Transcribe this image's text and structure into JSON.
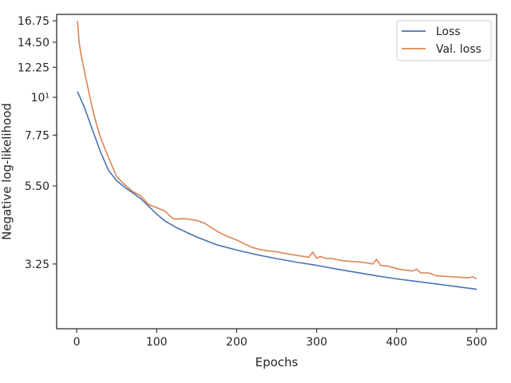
{
  "chart_data": {
    "type": "line",
    "xlabel": "Epochs",
    "ylabel": "Negative log-likelihood",
    "xlim": [
      -25,
      525
    ],
    "ylim": [
      2.1,
      17.5
    ],
    "y_scale": "log",
    "x_ticks": [
      0,
      100,
      200,
      300,
      400,
      500
    ],
    "y_ticks": [
      {
        "value": 3.25,
        "label": "3.25"
      },
      {
        "value": 5.5,
        "label": "5.50"
      },
      {
        "value": 7.75,
        "label": "7.75"
      },
      {
        "value": 10.0,
        "label": "10¹"
      },
      {
        "value": 12.25,
        "label": "12.25"
      },
      {
        "value": 14.5,
        "label": "14.50"
      },
      {
        "value": 16.75,
        "label": "16.75"
      }
    ],
    "grid": false,
    "legend_position": "top-right",
    "series": [
      {
        "name": "Loss",
        "color": "#4c72b0",
        "x": [
          1,
          10,
          20,
          30,
          40,
          50,
          60,
          70,
          80,
          90,
          100,
          110,
          125,
          150,
          175,
          200,
          225,
          250,
          275,
          300,
          325,
          350,
          375,
          400,
          425,
          450,
          475,
          500
        ],
        "y": [
          10.4,
          9.3,
          8.0,
          6.9,
          6.1,
          5.7,
          5.45,
          5.25,
          5.05,
          4.8,
          4.55,
          4.35,
          4.15,
          3.9,
          3.7,
          3.57,
          3.46,
          3.37,
          3.29,
          3.22,
          3.14,
          3.07,
          3.0,
          2.94,
          2.89,
          2.84,
          2.79,
          2.74
        ]
      },
      {
        "name": "Val. loss",
        "color": "#dd8452",
        "x": [
          1,
          3,
          5,
          10,
          15,
          20,
          25,
          30,
          35,
          40,
          50,
          60,
          70,
          80,
          90,
          100,
          110,
          120,
          125,
          130,
          140,
          150,
          160,
          170,
          180,
          190,
          200,
          210,
          220,
          230,
          240,
          250,
          260,
          270,
          280,
          290,
          295,
          300,
          305,
          310,
          320,
          330,
          340,
          350,
          360,
          370,
          375,
          380,
          390,
          400,
          410,
          420,
          425,
          430,
          440,
          450,
          460,
          470,
          480,
          490,
          495,
          500
        ],
        "y": [
          16.75,
          14.5,
          13.5,
          11.8,
          10.4,
          9.2,
          8.3,
          7.6,
          7.1,
          6.65,
          5.85,
          5.55,
          5.3,
          5.15,
          4.85,
          4.75,
          4.65,
          4.42,
          4.4,
          4.41,
          4.4,
          4.36,
          4.28,
          4.13,
          4.0,
          3.9,
          3.82,
          3.72,
          3.63,
          3.58,
          3.55,
          3.53,
          3.49,
          3.46,
          3.43,
          3.4,
          3.52,
          3.38,
          3.42,
          3.38,
          3.37,
          3.33,
          3.31,
          3.3,
          3.28,
          3.25,
          3.35,
          3.22,
          3.2,
          3.15,
          3.12,
          3.1,
          3.14,
          3.06,
          3.06,
          3.0,
          2.99,
          2.98,
          2.97,
          2.96,
          2.98,
          2.94
        ]
      }
    ]
  }
}
